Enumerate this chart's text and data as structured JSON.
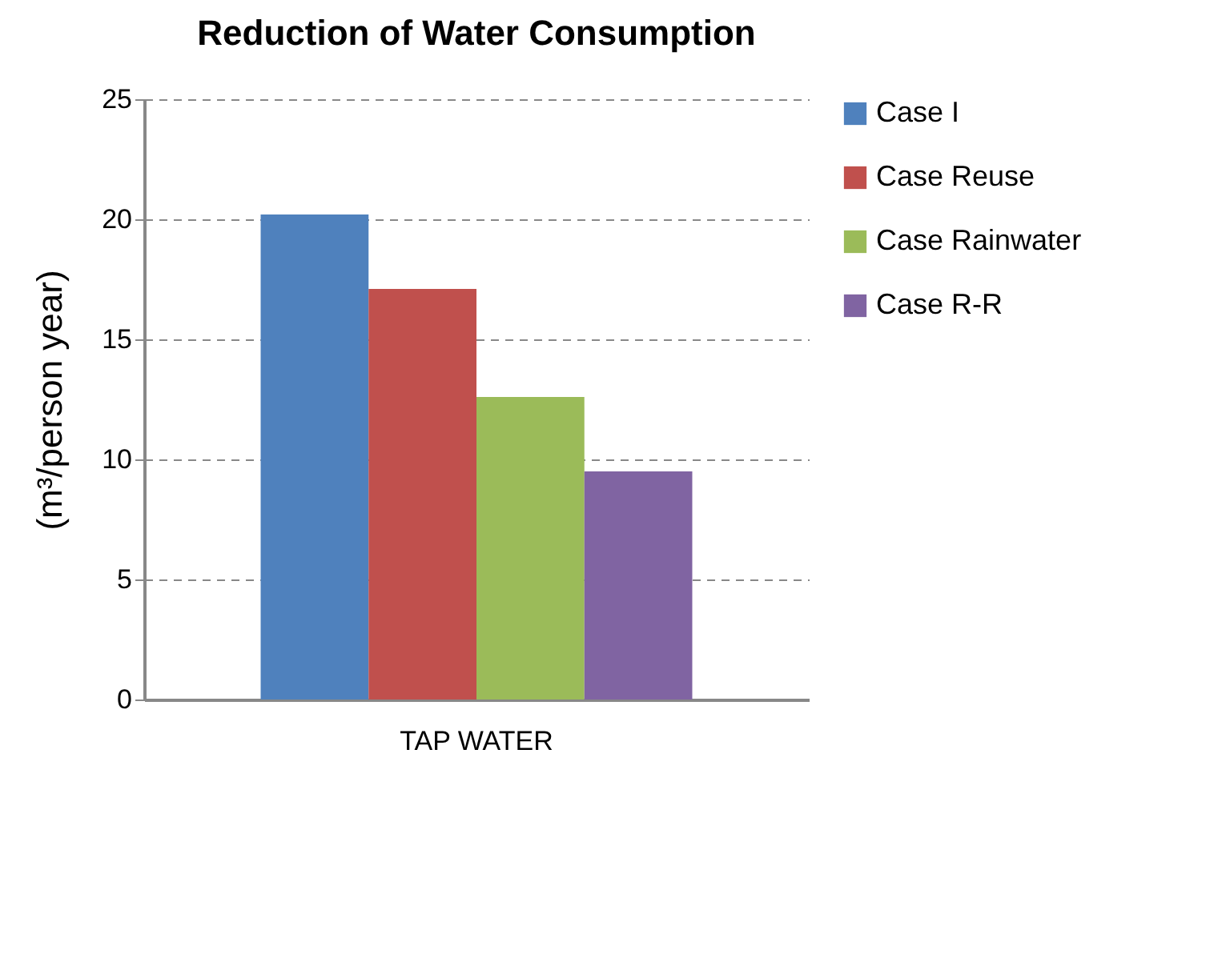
{
  "chart_data": {
    "type": "bar",
    "title": "Reduction of Water Consumption",
    "ylabel": "(m³/person year)",
    "categories": [
      "TAP WATER"
    ],
    "series": [
      {
        "name": "Case I",
        "color": "#4f81bd",
        "values": [
          20.2
        ]
      },
      {
        "name": "Case Reuse",
        "color": "#c0504d",
        "values": [
          17.1
        ]
      },
      {
        "name": "Case Rainwater",
        "color": "#9bbb59",
        "values": [
          12.6
        ]
      },
      {
        "name": "Case R-R",
        "color": "#8064a2",
        "values": [
          9.5
        ]
      }
    ],
    "ylim": [
      0,
      25
    ],
    "yticks": [
      0,
      5,
      10,
      15,
      20,
      25
    ],
    "grid": "y",
    "line_style": "dashed",
    "legend": "right"
  }
}
